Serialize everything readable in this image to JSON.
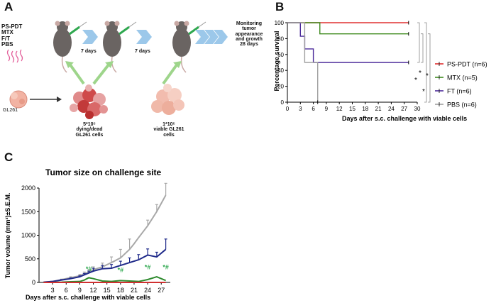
{
  "panels": {
    "a": "A",
    "b": "B",
    "c": "C"
  },
  "panel_a": {
    "treatments": [
      "PS-PDT",
      "MTX",
      "F/T",
      "PBS"
    ],
    "cell_line": "GL261",
    "interval_1": "7 days",
    "interval_2": "7 days",
    "monitoring": [
      "Monitoring",
      "tumor",
      "appearance",
      "and growth",
      "28 days"
    ],
    "dead_cells_label": [
      "5*10⁵",
      "dying/dead",
      "GL261 cells"
    ],
    "viable_cells_label": [
      "1*10⁵",
      "viable GL261",
      "cells"
    ],
    "colors": {
      "syringe": "#2fa84f",
      "arrow_chevron": "#9cc8ea",
      "arrow_up": "#9ed58b",
      "mouse": "#6a6462",
      "dead_cells": "#cf4a4a",
      "viable_cells": "#f0b9a9"
    }
  },
  "chart_data": [
    {
      "type": "line",
      "subtype": "kaplan-meier",
      "title": "",
      "xlabel": "Days after s.c. challenge with viable cells",
      "ylabel": "Percentage survival",
      "xlim": [
        0,
        30
      ],
      "ylim": [
        0,
        100
      ],
      "xticks": [
        "0",
        "3",
        "6",
        "9",
        "12",
        "15",
        "18",
        "21",
        "24",
        "27",
        "30"
      ],
      "yticks": [
        "0",
        "20",
        "40",
        "60",
        "80",
        "100"
      ],
      "legend_position": "right",
      "series": [
        {
          "name": "PS-PDT (n=6)",
          "color": "#e03030",
          "x": [
            0,
            28
          ],
          "y": [
            100,
            100
          ]
        },
        {
          "name": "MTX (n=5)",
          "color": "#3f8b1f",
          "x": [
            0,
            7.5,
            7.5,
            28
          ],
          "y": [
            100,
            100,
            86,
            86
          ]
        },
        {
          "name": "FT (n=6)",
          "color": "#4b2a9a",
          "x": [
            0,
            3,
            3,
            4,
            4,
            6,
            6,
            28
          ],
          "y": [
            100,
            100,
            83,
            83,
            67,
            67,
            50,
            50
          ]
        },
        {
          "name": "PBS (n=6)",
          "color": "#a0a0a0",
          "x": [
            0,
            4,
            4,
            7,
            7
          ],
          "y": [
            100,
            100,
            50,
            50,
            0
          ]
        }
      ],
      "significance": [
        "*",
        "*",
        "*",
        "*"
      ]
    },
    {
      "type": "line",
      "title": "Tumor size on challenge site",
      "xlabel": "Days after s.c. challenge with viable cells",
      "ylabel": "Tumor volume (mm³)±S.E.M.",
      "xlim": [
        0,
        29
      ],
      "ylim": [
        0,
        2000
      ],
      "xticks": [
        "3",
        "6",
        "9",
        "12",
        "15",
        "18",
        "21",
        "24",
        "27"
      ],
      "yticks": [
        "0",
        "500",
        "1000",
        "1500",
        "2000"
      ],
      "series": [
        {
          "name": "PBS",
          "color": "#a8a8a8",
          "x": [
            1,
            3,
            5,
            7,
            9,
            10,
            11,
            12,
            14,
            16,
            18,
            20,
            21,
            22,
            24,
            26,
            28
          ],
          "y": [
            5,
            20,
            60,
            100,
            140,
            180,
            220,
            270,
            330,
            420,
            520,
            700,
            820,
            950,
            1200,
            1500,
            1850
          ],
          "err": [
            0,
            0,
            10,
            20,
            30,
            40,
            50,
            60,
            80,
            120,
            180,
            220,
            0,
            0,
            120,
            150,
            250
          ]
        },
        {
          "name": "FT",
          "color": "#1f2a8a",
          "x": [
            1,
            3,
            5,
            7,
            9,
            10,
            11,
            12,
            14,
            16,
            18,
            20,
            22,
            24,
            26,
            28
          ],
          "y": [
            5,
            20,
            50,
            80,
            120,
            160,
            200,
            240,
            290,
            300,
            360,
            420,
            480,
            580,
            540,
            700
          ],
          "err": [
            0,
            0,
            10,
            15,
            20,
            30,
            40,
            60,
            70,
            80,
            90,
            100,
            110,
            130,
            100,
            220
          ]
        },
        {
          "name": "MTX",
          "color": "#2d8a2d",
          "x": [
            1,
            3,
            5,
            7,
            9,
            10,
            11,
            12,
            14,
            16,
            18,
            20,
            22,
            24,
            26,
            28
          ],
          "y": [
            0,
            0,
            5,
            15,
            20,
            50,
            100,
            80,
            30,
            20,
            40,
            30,
            20,
            60,
            120,
            40
          ],
          "err": [
            0,
            0,
            0,
            0,
            0,
            0,
            0,
            0,
            0,
            0,
            0,
            0,
            0,
            0,
            0,
            0
          ]
        },
        {
          "name": "PS-PDT",
          "color": "#d03030",
          "x": [
            1,
            3,
            5,
            7,
            9,
            11,
            13,
            15,
            17,
            19,
            21,
            23,
            25,
            27,
            28
          ],
          "y": [
            0,
            0,
            0,
            0,
            0,
            0,
            0,
            0,
            0,
            0,
            0,
            0,
            0,
            0,
            0
          ],
          "err": [
            0,
            0,
            0,
            0,
            0,
            0,
            0,
            0,
            0,
            0,
            0,
            0,
            0,
            0,
            0
          ]
        }
      ],
      "annotations": [
        {
          "text": "*#",
          "x": 11,
          "y": 240
        },
        {
          "text": "*#",
          "x": 18,
          "y": 220
        },
        {
          "text": "*#",
          "x": 24,
          "y": 280
        },
        {
          "text": "*#",
          "x": 28,
          "y": 280
        }
      ],
      "annotation_color": "#2fa84f"
    }
  ]
}
